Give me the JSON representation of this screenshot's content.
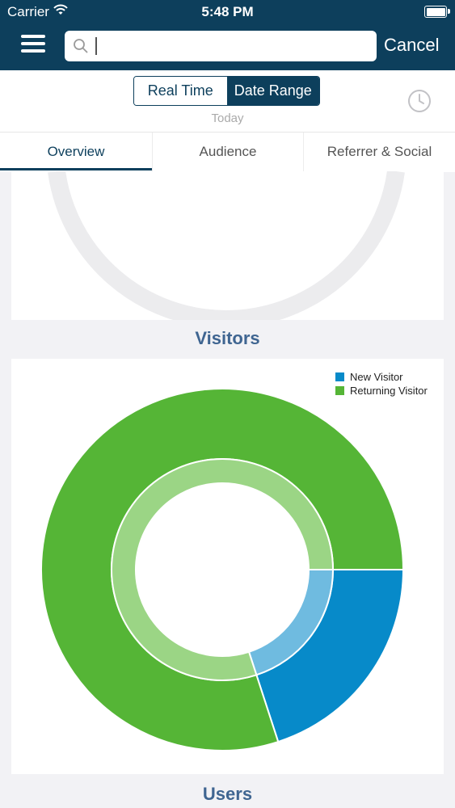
{
  "status_bar": {
    "carrier": "Carrier",
    "time": "5:48 PM"
  },
  "header": {
    "search": {
      "value": "",
      "placeholder": ""
    },
    "cancel_label": "Cancel"
  },
  "range_toggle": {
    "options": [
      "Real Time",
      "Date Range"
    ],
    "selected": "Date Range",
    "subtitle": "Today"
  },
  "tabs": [
    {
      "label": "Overview",
      "active": true
    },
    {
      "label": "Audience",
      "active": false
    },
    {
      "label": "Referrer & Social",
      "active": false
    }
  ],
  "sections": {
    "visitors_title": "Visitors",
    "users_title": "Users"
  },
  "chart_data": {
    "type": "pie",
    "variant": "donut",
    "legend_position": "top-right",
    "categories": [
      "New Visitor",
      "Returning Visitor"
    ],
    "values": [
      20,
      80
    ],
    "colors": [
      "#078ac9",
      "#55b536"
    ],
    "inner_ring_colors": [
      "#6fbbe0",
      "#9bd585"
    ]
  },
  "colors": {
    "primary": "#0d3f5c",
    "section_title": "#3f6591"
  }
}
